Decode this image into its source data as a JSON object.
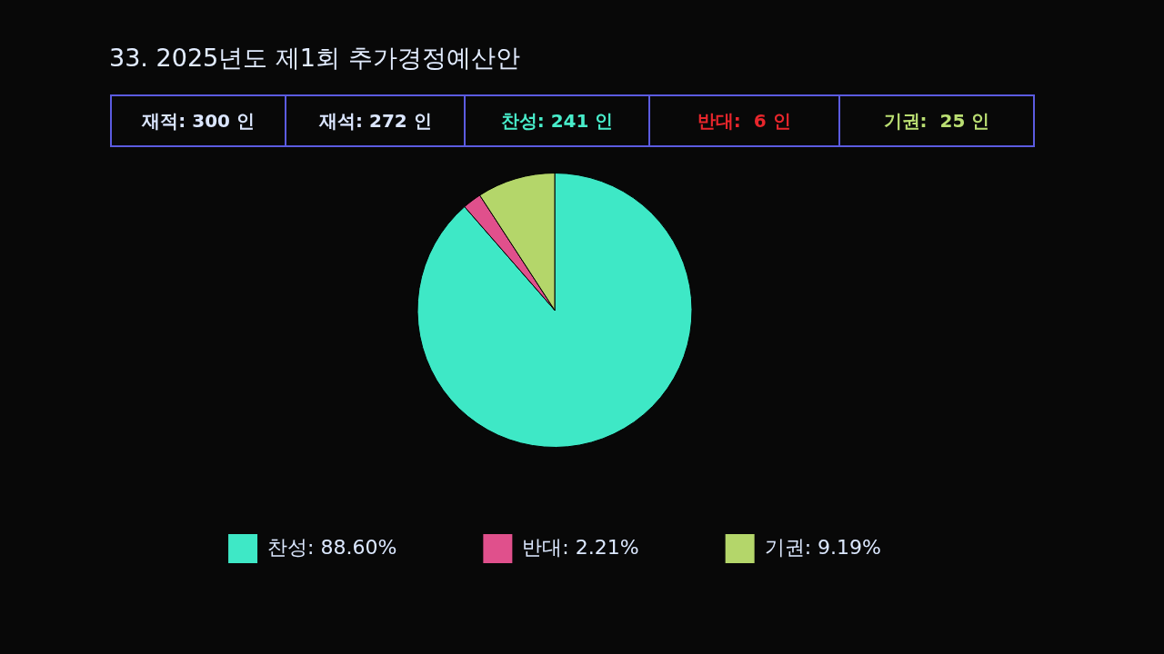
{
  "chart_data": {
    "type": "pie",
    "title": "33. 2025년도 제1회 추가경정예산안",
    "annotations": [
      "재적: 300 인",
      "재석: 272 인",
      "찬성: 241 인",
      "반대:  6 인",
      "기권:  25 인"
    ],
    "categories": [
      "찬성",
      "반대",
      "기권"
    ],
    "values": [
      88.6,
      2.21,
      9.19
    ],
    "value_labels": [
      "88.60%",
      "2.21%",
      "9.19%"
    ],
    "colors": [
      "#3ee8c6",
      "#e0508c",
      "#b4d66a"
    ],
    "legend": "bottom"
  }
}
